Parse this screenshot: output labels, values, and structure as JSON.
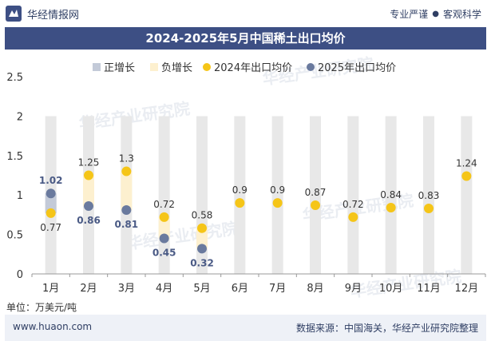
{
  "header": {
    "brand": "华经情报网",
    "slogan_left": "专业严谨",
    "slogan_right": "客观科学"
  },
  "title": "2024-2025年5月中国稀土出口均价",
  "unit_label": "单位：万美元/吨",
  "footer": {
    "site": "www.huaon.com",
    "source": "数据来源：中国海关，华经产业研究院整理"
  },
  "watermark": "华经产业研究院",
  "chart_data": {
    "type": "line",
    "categories": [
      "1月",
      "2月",
      "3月",
      "4月",
      "5月",
      "6月",
      "7月",
      "8月",
      "9月",
      "10月",
      "11月",
      "12月"
    ],
    "series": [
      {
        "name": "2024年出口均价",
        "values": [
          0.77,
          1.25,
          1.3,
          0.72,
          0.58,
          0.9,
          0.9,
          0.87,
          0.72,
          0.84,
          0.83,
          1.24
        ],
        "color": "#f5c518"
      },
      {
        "name": "2025年出口均价",
        "values": [
          1.02,
          0.86,
          0.81,
          0.45,
          0.32,
          null,
          null,
          null,
          null,
          null,
          null,
          null
        ],
        "color": "#6a7a9e"
      }
    ],
    "legend": [
      {
        "name": "正增长",
        "color": "#c3cad8"
      },
      {
        "name": "负增长",
        "color": "#fdf0cf"
      },
      {
        "name": "2024年出口均价",
        "color": "#f5c518"
      },
      {
        "name": "2025年出口均价",
        "color": "#6a7a9e"
      }
    ],
    "ylim": [
      0,
      2.5
    ],
    "yticks": [
      "0",
      "0.5",
      "1",
      "1.5",
      "2",
      "2.5"
    ],
    "background_band_max": 2,
    "band_color": "#e8e8e8",
    "legend_position": "top",
    "grid": false
  }
}
